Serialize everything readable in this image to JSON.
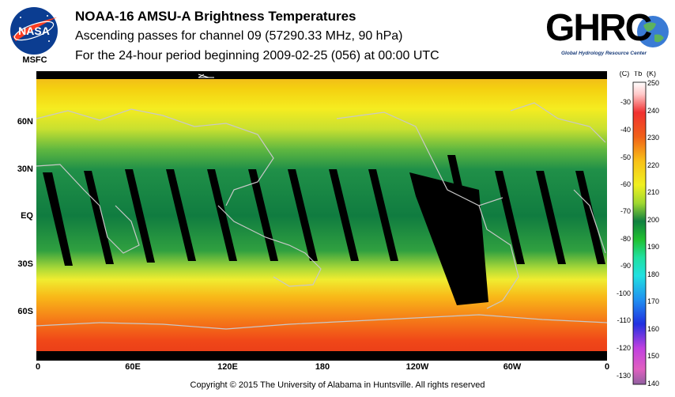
{
  "header": {
    "title": "NOAA-16 AMSU-A Brightness Temperatures",
    "subtitle": "Ascending passes for channel 09 (57290.33 MHz, 90 hPa)",
    "period": "For the 24-hour period beginning 2009-02-25 (056) at 00:00 UTC"
  },
  "logos": {
    "left_name": "NASA",
    "left_sub": "MSFC",
    "right_name": "GHRC",
    "right_sub": "Global Hydrology Resource Center"
  },
  "map": {
    "lat_labels": [
      "60N",
      "30N",
      "EQ",
      "30S",
      "60S"
    ],
    "lon_labels": [
      "0",
      "60E",
      "120E",
      "180",
      "120W",
      "60W",
      "0"
    ],
    "colors": {
      "band_cold_pole": "#f04020",
      "band_warm_mid": "#f0e020",
      "band_tropic": "#108040"
    }
  },
  "colorbar": {
    "left_unit": "(C)",
    "tb_label": "Tb",
    "right_unit": "(K)",
    "celsius_ticks": [
      "-30",
      "-40",
      "-50",
      "-60",
      "-70",
      "-80",
      "-90",
      "-100",
      "-110",
      "-120",
      "-130"
    ],
    "kelvin_ticks": [
      "250",
      "240",
      "230",
      "220",
      "210",
      "200",
      "190",
      "180",
      "170",
      "160",
      "150",
      "140"
    ]
  },
  "footer": {
    "copyright": "Copyright © 2015 The University of Alabama in Huntsville.  All rights reserved"
  }
}
